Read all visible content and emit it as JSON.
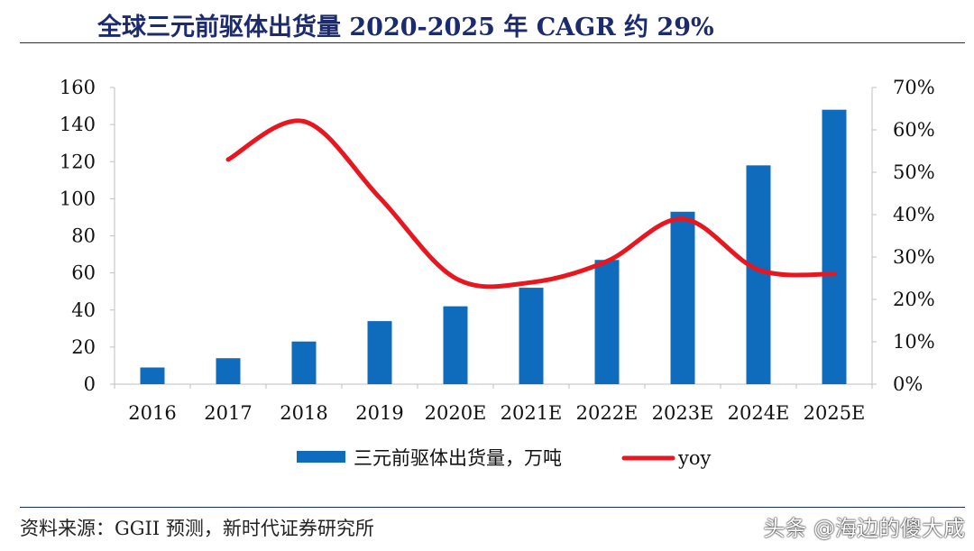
{
  "title": "全球三元前驱体出货量 2020-2025 年 CAGR 约 29%",
  "source": "资料来源：GGII 预测，新时代证券研究所",
  "watermark": "头条 @海边的傻大成",
  "colors": {
    "bar": "#0f6cbd",
    "line": "#e8161f",
    "title": "#1c2a6e",
    "axis": "#bfbfbf"
  },
  "chart_data": {
    "type": "bar",
    "title": "",
    "categories": [
      "2016",
      "2017",
      "2018",
      "2019",
      "2020E",
      "2021E",
      "2022E",
      "2023E",
      "2024E",
      "2025E"
    ],
    "series": [
      {
        "name": "三元前驱体出货量，万吨",
        "type": "bar",
        "axis": "left",
        "values": [
          9,
          14,
          23,
          34,
          42,
          52,
          67,
          93,
          118,
          148
        ]
      },
      {
        "name": "yoy",
        "type": "line",
        "axis": "right",
        "smooth": true,
        "values": [
          null,
          0.53,
          0.62,
          0.44,
          0.25,
          0.24,
          0.29,
          0.39,
          0.27,
          0.26
        ]
      }
    ],
    "y_left": {
      "min": 0,
      "max": 160,
      "ticks": [
        0,
        20,
        40,
        60,
        80,
        100,
        120,
        140,
        160
      ]
    },
    "y_right": {
      "min": 0,
      "max": 0.7,
      "ticks": [
        0,
        0.1,
        0.2,
        0.3,
        0.4,
        0.5,
        0.6,
        0.7
      ],
      "tick_labels": [
        "0%",
        "10%",
        "20%",
        "30%",
        "40%",
        "50%",
        "60%",
        "70%"
      ]
    },
    "legend": {
      "position": "bottom",
      "items": [
        "三元前驱体出货量，万吨",
        "yoy"
      ]
    },
    "grid": false
  }
}
